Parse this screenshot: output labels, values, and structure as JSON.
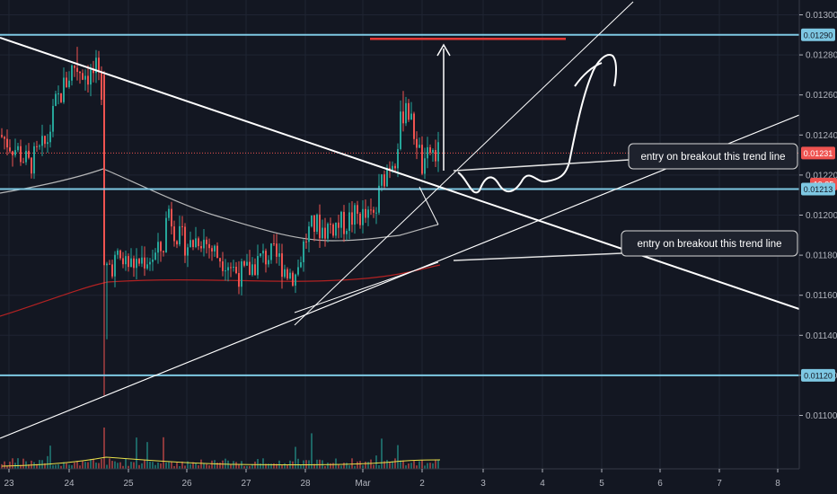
{
  "chart_data": {
    "type": "candlestick",
    "title": "",
    "xlabel": "",
    "ylabel": "",
    "ylim": [
      0.01095,
      0.01305
    ],
    "y_ticks": [
      "0.01300",
      "0.01280",
      "0.01260",
      "0.01240",
      "0.01220",
      "0.01200",
      "0.01180",
      "0.01160",
      "0.01140",
      "0.01120",
      "0.01100"
    ],
    "x_ticks": [
      "23",
      "24",
      "25",
      "26",
      "27",
      "28",
      "Mar",
      "2",
      "3",
      "4",
      "5",
      "6",
      "7",
      "8"
    ],
    "price_tags": [
      {
        "value": "0.01290",
        "color": "#7ec8e3",
        "text_color": "#131722"
      },
      {
        "value": "0.01231",
        "color": "#ef5350",
        "text_color": "#ffffff"
      },
      {
        "value": "19:35",
        "color": "#ef5350",
        "text_color": "#ffffff"
      },
      {
        "value": "0.01213",
        "color": "#7ec8e3",
        "text_color": "#131722"
      },
      {
        "value": "0.01120",
        "color": "#7ec8e3",
        "text_color": "#131722"
      }
    ],
    "horizontal_levels": [
      0.0129,
      0.01213,
      0.0112
    ],
    "target_level": 0.01288,
    "last_price": 0.01231,
    "annotations": [
      {
        "text": "entry on breakout this trend line"
      },
      {
        "text": "entry on breakout this trend line"
      }
    ],
    "colors": {
      "background": "#131722",
      "up": "#26a69a",
      "down": "#ef5350",
      "level": "#7ec8e3",
      "trendline": "#ffffff",
      "ma_white": "#c8c8c8",
      "ma_red": "#b22222",
      "ma_yellow": "#e8e04a",
      "target": "#e53935"
    }
  }
}
